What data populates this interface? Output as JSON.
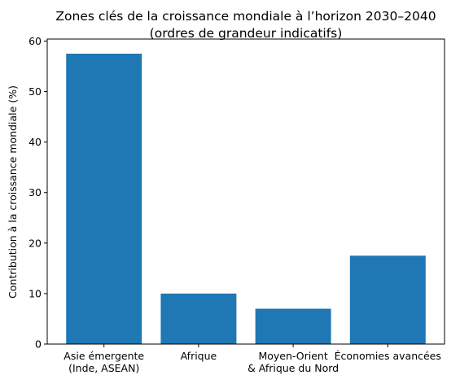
{
  "chart_data": {
    "type": "bar",
    "title": "Zones clés de la croissance mondiale à l’horizon 2030–2040",
    "subtitle": "(ordres de grandeur indicatifs)",
    "xlabel": "",
    "ylabel": "Contribution à la croissance mondiale (%)",
    "categories": [
      "Asie émergente\n(Inde, ASEAN)",
      "Afrique",
      "Moyen-Orient\n& Afrique du Nord",
      "Économies avancées"
    ],
    "values": [
      57.5,
      10,
      7,
      17.5
    ],
    "ylim": [
      0,
      60.4
    ],
    "yticks": [
      "0",
      "10",
      "20",
      "30",
      "40",
      "50",
      "60"
    ],
    "grid": false,
    "legend": "none",
    "bar_color": "#1f77b4"
  }
}
